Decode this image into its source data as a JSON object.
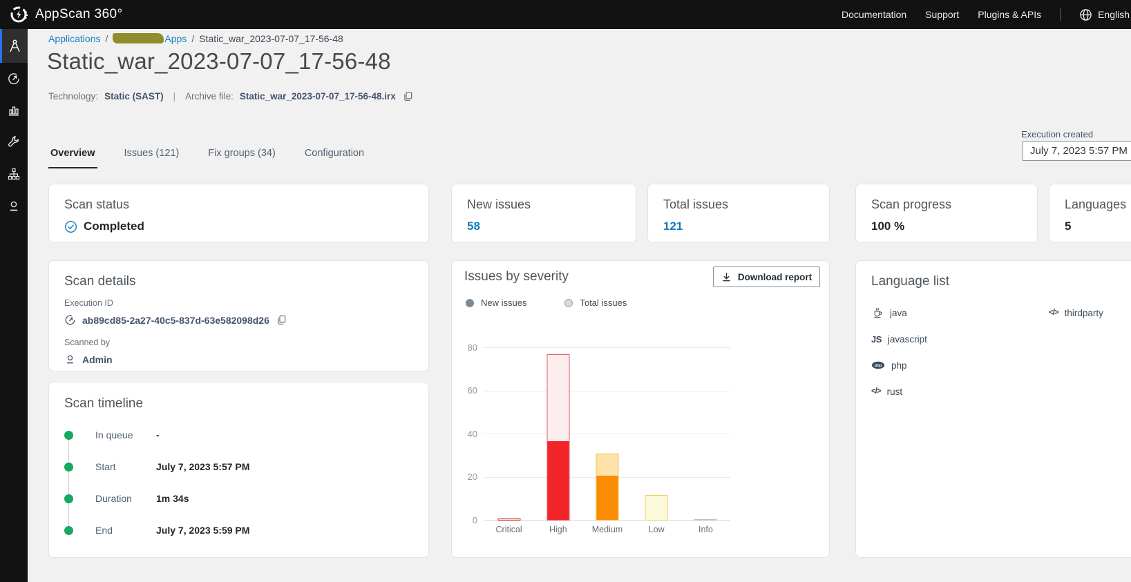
{
  "header": {
    "brand": "AppScan 360°",
    "nav": [
      {
        "label": "Documentation"
      },
      {
        "label": "Support"
      },
      {
        "label": "Plugins & APIs"
      }
    ],
    "language": "English"
  },
  "sidebar": {
    "items": [
      {
        "icon": "compass-applications-icon",
        "active": true
      },
      {
        "icon": "gauge-scan-icon",
        "active": false
      },
      {
        "icon": "bar-chart-icon",
        "active": false
      },
      {
        "icon": "wrench-icon",
        "active": false
      },
      {
        "icon": "hierarchy-icon",
        "active": false
      },
      {
        "icon": "user-icon",
        "active": false
      }
    ]
  },
  "breadcrumb": {
    "root": "Applications",
    "separator": "/",
    "group": "Apps",
    "current": "Static_war_2023-07-07_17-56-48"
  },
  "page": {
    "title": "Static_war_2023-07-07_17-56-48",
    "technology_label": "Technology:",
    "technology_value": "Static (SAST)",
    "divider": "|",
    "archive_label": "Archive file:",
    "archive_value": "Static_war_2023-07-07_17-56-48.irx"
  },
  "execution": {
    "label": "Execution created",
    "value": "July 7, 2023 5:57 PM"
  },
  "tabs": [
    {
      "label": "Overview",
      "active": true
    },
    {
      "label": "Issues (121)",
      "active": false
    },
    {
      "label": "Fix groups (34)",
      "active": false
    },
    {
      "label": "Configuration",
      "active": false
    }
  ],
  "stats": {
    "scan_status": {
      "title": "Scan status",
      "value": "Completed"
    },
    "new_issues": {
      "title": "New issues",
      "value": "58"
    },
    "total_issues": {
      "title": "Total issues",
      "value": "121"
    },
    "scan_progress": {
      "title": "Scan progress",
      "value": "100 %"
    },
    "languages": {
      "title": "Languages",
      "value": "5"
    }
  },
  "scan_details": {
    "title": "Scan details",
    "execution_id_label": "Execution ID",
    "execution_id": "ab89cd85-2a27-40c5-837d-63e582098d26",
    "scanned_by_label": "Scanned by",
    "scanned_by": "Admin"
  },
  "scan_timeline": {
    "title": "Scan timeline",
    "events": [
      {
        "label": "In queue",
        "value": "-"
      },
      {
        "label": "Start",
        "value": "July 7, 2023 5:57 PM"
      },
      {
        "label": "Duration",
        "value": "1m 34s"
      },
      {
        "label": "End",
        "value": "July 7, 2023 5:59 PM"
      }
    ]
  },
  "issues_panel": {
    "title": "Issues by severity",
    "download_label": "Download report",
    "legend_new": "New issues",
    "legend_total": "Total issues"
  },
  "language_list": {
    "title": "Language list",
    "col1": [
      {
        "icon": "java-icon",
        "label": "java"
      },
      {
        "icon": "js-icon",
        "label": "javascript"
      },
      {
        "icon": "php-icon",
        "label": "php"
      },
      {
        "icon": "code-icon",
        "label": "rust"
      }
    ],
    "col2": [
      {
        "icon": "code-icon",
        "label": "thirdparty"
      }
    ]
  },
  "chart_data": {
    "type": "bar",
    "title": "Issues by severity",
    "categories": [
      "Critical",
      "High",
      "Medium",
      "Low",
      "Info"
    ],
    "series": [
      {
        "name": "New issues",
        "values": [
          0,
          37,
          21,
          0,
          0
        ]
      },
      {
        "name": "Total issues",
        "values": [
          1,
          77,
          31,
          12,
          0
        ]
      }
    ],
    "ylim": [
      0,
      80
    ],
    "yticks_top_down": [
      "80",
      "60",
      "40",
      "20",
      "0"
    ],
    "grid": true,
    "legend_position": "top-left",
    "severity_styles": {
      "Critical": {
        "solid": "#d13228",
        "fill": "#f6dedc",
        "border": "#d13228"
      },
      "High": {
        "solid": "#f2252b",
        "fill": "#fcedee",
        "border": "#ee5a63"
      },
      "Medium": {
        "solid": "#fb8b00",
        "fill": "#fde2a9",
        "border": "#f8bd4f"
      },
      "Low": {
        "solid": "#fcf8da",
        "fill": "#fcf8da",
        "border": "#f0d264"
      },
      "Info": {
        "solid": "#b9bfc4",
        "fill": "#e9ebed",
        "border": "#b9bfc4"
      }
    },
    "colors": {
      "accent_blue": "#147abf",
      "green": "#17a95e"
    }
  }
}
